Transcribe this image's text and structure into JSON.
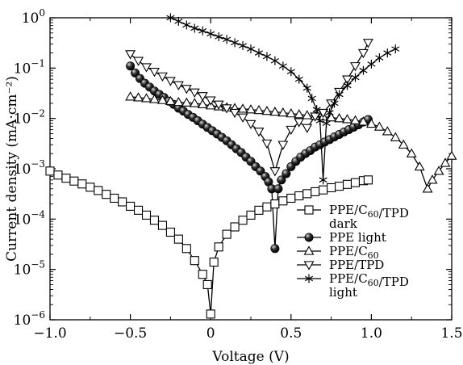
{
  "chart_data": {
    "type": "scatter",
    "xlabel": "Voltage (V)",
    "ylabel": "Current density (mA·cm⁻²)",
    "xlim": [
      -1.0,
      1.5
    ],
    "ylim": [
      1e-06,
      1
    ],
    "yscale": "log",
    "x_ticks": [
      -1.0,
      -0.5,
      0,
      0.5,
      1.0,
      1.5
    ],
    "x_tick_labels": [
      "−1.0",
      "−0.5",
      "0",
      "0.5",
      "1.0",
      "1.5"
    ],
    "y_ticks": [
      1e-06,
      1e-05,
      0.0001,
      0.001,
      0.01,
      0.1,
      1
    ],
    "y_tick_labels": [
      {
        "base": "10",
        "exp": "−6"
      },
      {
        "base": "10",
        "exp": "−5"
      },
      {
        "base": "10",
        "exp": "−4"
      },
      {
        "base": "10",
        "exp": "−3"
      },
      {
        "base": "10",
        "exp": "−2"
      },
      {
        "base": "10",
        "exp": "−1"
      },
      {
        "base": "10",
        "exp": "0"
      }
    ],
    "grid": false,
    "legend_position": "bottom-right",
    "series": [
      {
        "name": "PPE/C60/TPD dark",
        "legend_lines": [
          [
            {
              "t": "PPE/C"
            },
            {
              "t": "60",
              "sub": true
            },
            {
              "t": "/TPD"
            }
          ],
          [
            {
              "t": "dark"
            }
          ]
        ],
        "marker": "square",
        "x": [
          -1.0,
          -0.95,
          -0.9,
          -0.85,
          -0.8,
          -0.75,
          -0.7,
          -0.65,
          -0.6,
          -0.55,
          -0.5,
          -0.45,
          -0.4,
          -0.35,
          -0.3,
          -0.25,
          -0.2,
          -0.15,
          -0.1,
          -0.05,
          -0.02,
          0.0,
          0.02,
          0.05,
          0.1,
          0.15,
          0.2,
          0.25,
          0.3,
          0.35,
          0.4,
          0.45,
          0.5,
          0.55,
          0.6,
          0.65,
          0.7,
          0.75,
          0.8,
          0.85,
          0.9,
          0.95,
          0.98
        ],
        "y": [
          0.0009,
          0.00075,
          0.00065,
          0.00057,
          0.0005,
          0.00043,
          0.00037,
          0.00031,
          0.00026,
          0.00022,
          0.00018,
          0.00015,
          0.00012,
          9.5e-05,
          7.5e-05,
          5.5e-05,
          4e-05,
          2.6e-05,
          1.5e-05,
          8e-06,
          5e-06,
          1.3e-06,
          1.4e-05,
          2.8e-05,
          5e-05,
          7e-05,
          9.5e-05,
          0.00012,
          0.00015,
          0.000175,
          0.0002,
          0.00023,
          0.00026,
          0.00029,
          0.00032,
          0.00035,
          0.00038,
          0.00042,
          0.00045,
          0.00049,
          0.00053,
          0.00058,
          0.0006
        ]
      },
      {
        "name": "PPE light",
        "legend_lines": [
          [
            {
              "t": "PPE light"
            }
          ]
        ],
        "marker": "sphere",
        "x": [
          -0.5,
          -0.47,
          -0.44,
          -0.41,
          -0.38,
          -0.35,
          -0.32,
          -0.29,
          -0.26,
          -0.23,
          -0.2,
          -0.17,
          -0.14,
          -0.11,
          -0.08,
          -0.05,
          -0.02,
          0.01,
          0.04,
          0.07,
          0.1,
          0.13,
          0.16,
          0.19,
          0.22,
          0.25,
          0.28,
          0.31,
          0.34,
          0.36,
          0.38,
          0.4,
          0.42,
          0.44,
          0.47,
          0.5,
          0.53,
          0.56,
          0.59,
          0.62,
          0.65,
          0.68,
          0.71,
          0.74,
          0.77,
          0.8,
          0.83,
          0.86,
          0.89,
          0.92,
          0.95,
          0.98
        ],
        "y": [
          0.11,
          0.08,
          0.062,
          0.05,
          0.042,
          0.035,
          0.03,
          0.026,
          0.022,
          0.019,
          0.016,
          0.014,
          0.012,
          0.0105,
          0.009,
          0.0077,
          0.0066,
          0.0057,
          0.0049,
          0.0042,
          0.0036,
          0.003,
          0.0025,
          0.0021,
          0.0017,
          0.0014,
          0.0011,
          0.0009,
          0.0007,
          0.00055,
          0.0004,
          2.6e-05,
          0.0004,
          0.0006,
          0.0008,
          0.0011,
          0.0014,
          0.0017,
          0.002,
          0.0023,
          0.0027,
          0.003,
          0.0034,
          0.0038,
          0.0043,
          0.0048,
          0.0054,
          0.006,
          0.0067,
          0.0075,
          0.0085,
          0.0095
        ]
      },
      {
        "name": "PPE/C60",
        "legend_lines": [
          [
            {
              "t": "PPE/C"
            },
            {
              "t": "60",
              "sub": true
            }
          ]
        ],
        "marker": "triangle-up",
        "x": [
          -0.5,
          -0.45,
          -0.4,
          -0.35,
          -0.3,
          -0.25,
          -0.2,
          -0.15,
          -0.1,
          -0.05,
          0.0,
          0.05,
          0.1,
          0.15,
          0.2,
          0.25,
          0.3,
          0.35,
          0.4,
          0.45,
          0.5,
          0.55,
          0.6,
          0.65,
          0.7,
          0.75,
          0.8,
          0.85,
          0.9,
          0.95,
          1.0,
          1.05,
          1.1,
          1.15,
          1.2,
          1.25,
          1.3,
          1.35,
          1.38,
          1.42,
          1.46,
          1.5
        ],
        "y": [
          0.027,
          0.026,
          0.025,
          0.024,
          0.023,
          0.022,
          0.021,
          0.0205,
          0.02,
          0.019,
          0.018,
          0.0172,
          0.0165,
          0.016,
          0.0155,
          0.015,
          0.0145,
          0.014,
          0.0135,
          0.013,
          0.0125,
          0.012,
          0.0115,
          0.0112,
          0.0108,
          0.0104,
          0.01,
          0.0096,
          0.0091,
          0.0086,
          0.0078,
          0.0068,
          0.0055,
          0.0042,
          0.003,
          0.002,
          0.0011,
          0.0004,
          0.0006,
          0.0009,
          0.0013,
          0.0018
        ]
      },
      {
        "name": "PPE/TPD",
        "legend_lines": [
          [
            {
              "t": "PPE/TPD"
            }
          ]
        ],
        "marker": "triangle-down",
        "x": [
          -0.5,
          -0.45,
          -0.4,
          -0.35,
          -0.3,
          -0.25,
          -0.2,
          -0.15,
          -0.1,
          -0.05,
          0.0,
          0.05,
          0.1,
          0.15,
          0.2,
          0.25,
          0.3,
          0.35,
          0.4,
          0.45,
          0.5,
          0.55,
          0.6,
          0.65,
          0.7,
          0.75,
          0.8,
          0.85,
          0.9,
          0.95,
          0.98
        ],
        "y": [
          0.19,
          0.14,
          0.105,
          0.085,
          0.069,
          0.056,
          0.046,
          0.039,
          0.033,
          0.028,
          0.023,
          0.019,
          0.016,
          0.013,
          0.0105,
          0.0078,
          0.0055,
          0.0032,
          0.0009,
          0.003,
          0.006,
          0.0085,
          0.0065,
          0.011,
          0.013,
          0.02,
          0.034,
          0.06,
          0.11,
          0.2,
          0.32
        ]
      },
      {
        "name": "PPE/C60/TPD light",
        "legend_lines": [
          [
            {
              "t": "PPE/C"
            },
            {
              "t": "60",
              "sub": true
            },
            {
              "t": "/TPD"
            }
          ],
          [
            {
              "t": "light"
            }
          ]
        ],
        "marker": "asterisk",
        "x": [
          -0.25,
          -0.2,
          -0.15,
          -0.1,
          -0.05,
          0.0,
          0.05,
          0.1,
          0.15,
          0.2,
          0.25,
          0.3,
          0.35,
          0.4,
          0.45,
          0.5,
          0.55,
          0.6,
          0.63,
          0.66,
          0.68,
          0.7,
          0.72,
          0.74,
          0.77,
          0.8,
          0.85,
          0.9,
          0.95,
          1.0,
          1.05,
          1.1,
          1.15
        ],
        "y": [
          1.0,
          0.85,
          0.72,
          0.62,
          0.55,
          0.48,
          0.42,
          0.37,
          0.32,
          0.28,
          0.24,
          0.2,
          0.17,
          0.14,
          0.11,
          0.085,
          0.06,
          0.04,
          0.025,
          0.015,
          0.009,
          0.0006,
          0.008,
          0.013,
          0.02,
          0.03,
          0.045,
          0.065,
          0.09,
          0.12,
          0.16,
          0.2,
          0.24
        ]
      }
    ]
  }
}
